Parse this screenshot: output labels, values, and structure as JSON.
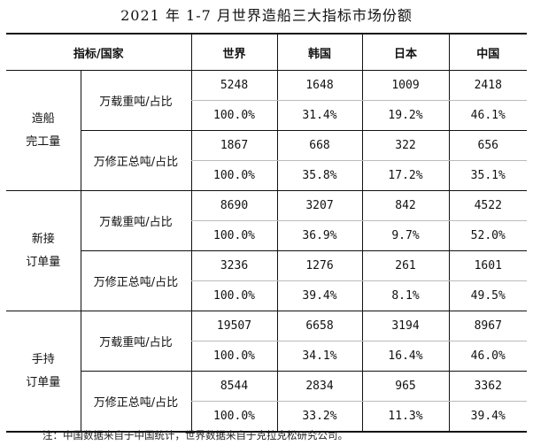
{
  "title": "2021 年 1-7 月世界造船三大指标市场份额",
  "headers": [
    "指标/国家",
    "世界",
    "韩国",
    "日本",
    "中国"
  ],
  "groups": [
    {
      "name_line1": "造船",
      "name_line2": "完工量",
      "metrics": [
        {
          "label": "万载重吨/占比",
          "values": [
            "5248",
            "1648",
            "1009",
            "2418"
          ],
          "shares": [
            "100.0%",
            "31.4%",
            "19.2%",
            "46.1%"
          ]
        },
        {
          "label": "万修正总吨/占比",
          "values": [
            "1867",
            "668",
            "322",
            "656"
          ],
          "shares": [
            "100.0%",
            "35.8%",
            "17.2%",
            "35.1%"
          ]
        }
      ]
    },
    {
      "name_line1": "新接",
      "name_line2": "订单量",
      "metrics": [
        {
          "label": "万载重吨/占比",
          "values": [
            "8690",
            "3207",
            "842",
            "4522"
          ],
          "shares": [
            "100.0%",
            "36.9%",
            "9.7%",
            "52.0%"
          ]
        },
        {
          "label": "万修正总吨/占比",
          "values": [
            "3236",
            "1276",
            "261",
            "1601"
          ],
          "shares": [
            "100.0%",
            "39.4%",
            "8.1%",
            "49.5%"
          ]
        }
      ]
    },
    {
      "name_line1": "手持",
      "name_line2": "订单量",
      "metrics": [
        {
          "label": "万载重吨/占比",
          "values": [
            "19507",
            "6658",
            "3194",
            "8967"
          ],
          "shares": [
            "100.0%",
            "34.1%",
            "16.4%",
            "46.0%"
          ]
        },
        {
          "label": "万修正总吨/占比",
          "values": [
            "8544",
            "2834",
            "965",
            "3362"
          ],
          "shares": [
            "100.0%",
            "33.2%",
            "11.3%",
            "39.4%"
          ]
        }
      ]
    }
  ],
  "note": "注：中国数据来自于中国统计，世界数据来自于克拉克松研究公司。"
}
